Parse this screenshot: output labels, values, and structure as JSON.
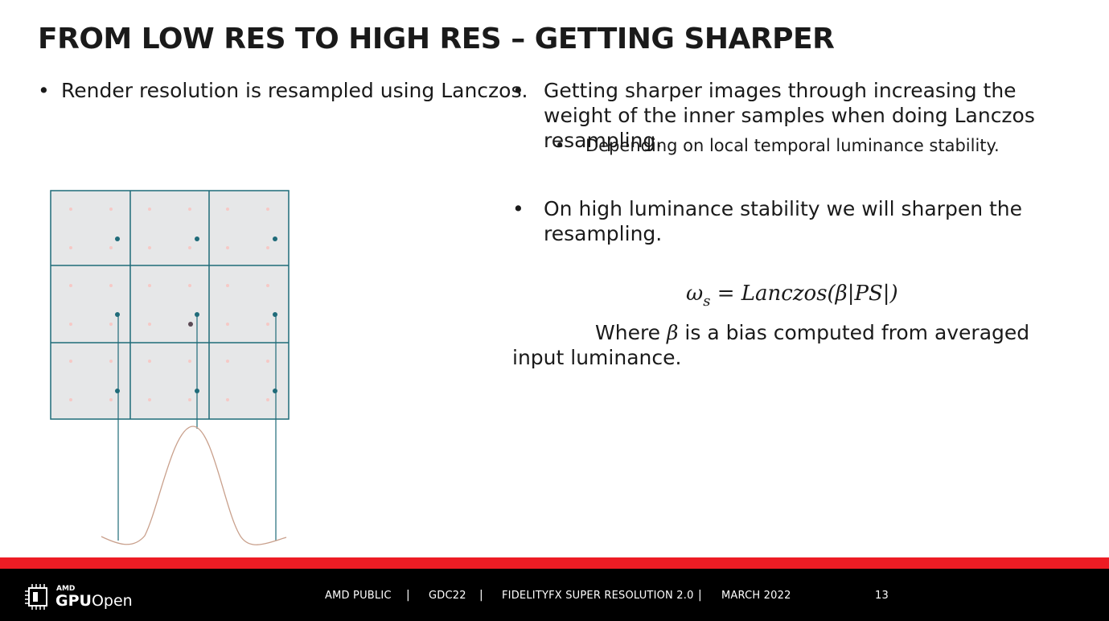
{
  "slide": {
    "title": "FROM LOW RES TO HIGH RES – GETTING SHARPER",
    "bullet_glyph": "•",
    "left_bullet": "Render resolution is resampled using Lanczos.",
    "right_bullet_1": "Getting sharper images through increasing the weight of the inner samples when doing Lanczos resampling.",
    "right_sub_bullet": "Depending on local temporal luminance stability.",
    "right_bullet_2": "On high luminance stability we will sharpen the resampling.",
    "formula_lhs": "ω",
    "formula_sub": "s",
    "formula_rhs": " = Lanczos(β|PS|)",
    "where_prefix": "Where ",
    "where_beta": "β",
    "where_suffix": " is a bias computed from averaged input luminance."
  },
  "colors": {
    "teal": "#1f6b79",
    "grid_fill": "#e6e7e8",
    "pink_dot": "#f6c9c6",
    "curve": "#c9a08c",
    "red_bar": "#ed1c24"
  },
  "footer": {
    "amd_label": "AMD",
    "gpu_label": "GPU",
    "open_label": "Open",
    "public_label": "AMD PUBLIC",
    "event_label": "GDC22",
    "product_label": "FIDELITYFX SUPER RESOLUTION 2.0",
    "date_label": "MARCH 2022",
    "separator": "|",
    "page_number": "13"
  }
}
